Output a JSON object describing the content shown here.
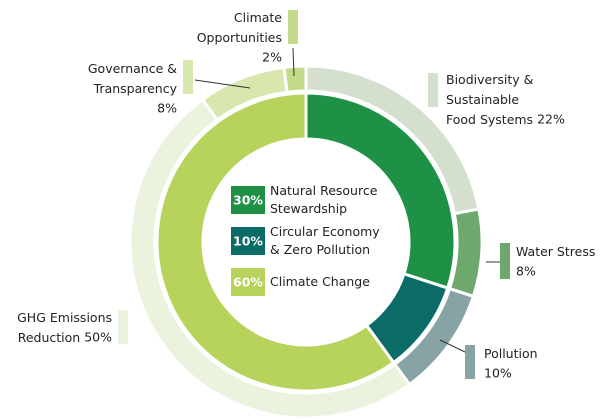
{
  "chart_data": {
    "type": "donut",
    "inner": {
      "categories": [
        "Natural Resource\nStewardship",
        "Circular Economy\n& Zero Pollution",
        "Climate Change"
      ],
      "values": [
        30,
        10,
        60
      ],
      "value_labels": [
        "30%",
        "10%",
        "60%"
      ],
      "colors": [
        "#1f9147",
        "#0b6b66",
        "#b7d35b"
      ]
    },
    "outer": {
      "categories": [
        "Biodiversity &\nSustainable\nFood Systems",
        "Water Stress",
        "Pollution",
        "GHG Emissions\nReduction",
        "Governance &\nTransparency",
        "Climate\nOpportunities"
      ],
      "values": [
        22,
        8,
        10,
        50,
        8,
        2
      ],
      "value_labels": [
        "22%",
        "8%",
        "10%",
        "50%",
        "8%",
        "2%"
      ],
      "colors": [
        "#d4e0cd",
        "#6ea86d",
        "#87a3a3",
        "#ebf2de",
        "#d7e7ad",
        "#c4da8a"
      ]
    }
  }
}
